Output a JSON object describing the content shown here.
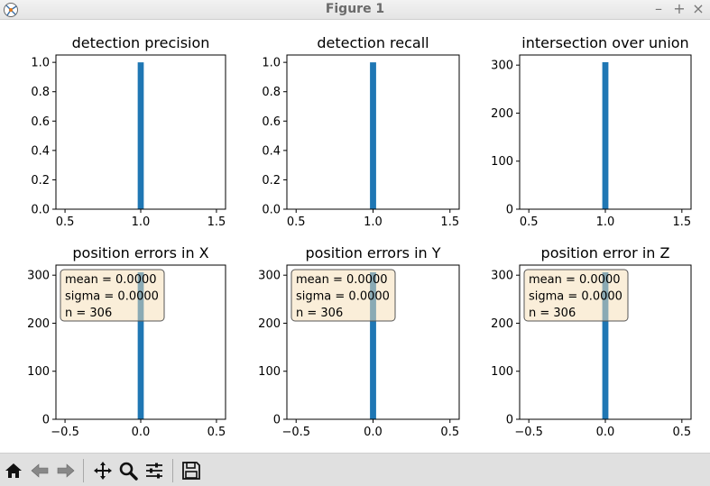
{
  "window": {
    "title": "Figure 1",
    "controls": {
      "minimize": "–",
      "maximize": "+",
      "close": "×"
    }
  },
  "toolbar": {
    "buttons": [
      {
        "name": "home-icon"
      },
      {
        "name": "back-arrow-icon"
      },
      {
        "name": "forward-arrow-icon"
      },
      {
        "name": "pan-icon"
      },
      {
        "name": "zoom-icon"
      },
      {
        "name": "configure-subplots-icon"
      },
      {
        "name": "save-icon"
      }
    ]
  },
  "colors": {
    "bar": "#1f77b4",
    "annotation_fill": "#f5deb3",
    "annotation_edge": "#555555"
  },
  "chart_data": [
    {
      "type": "bar",
      "title": "detection precision",
      "x": [
        1.0
      ],
      "values": [
        1.0
      ],
      "bar_width": 0.04,
      "xlim": [
        0.44,
        1.56
      ],
      "ylim": [
        0,
        1.05
      ],
      "xticks": [
        0.5,
        1.0,
        1.5
      ],
      "xtick_labels": [
        "0.5",
        "1.0",
        "1.5"
      ],
      "yticks": [
        0,
        0.2,
        0.4,
        0.6,
        0.8,
        1.0
      ],
      "ytick_labels": [
        "0.0",
        "0.2",
        "0.4",
        "0.6",
        "0.8",
        "1.0"
      ],
      "grid": false
    },
    {
      "type": "bar",
      "title": "detection recall",
      "x": [
        1.0
      ],
      "values": [
        1.0
      ],
      "bar_width": 0.04,
      "xlim": [
        0.44,
        1.56
      ],
      "ylim": [
        0,
        1.05
      ],
      "xticks": [
        0.5,
        1.0,
        1.5
      ],
      "xtick_labels": [
        "0.5",
        "1.0",
        "1.5"
      ],
      "yticks": [
        0,
        0.2,
        0.4,
        0.6,
        0.8,
        1.0
      ],
      "ytick_labels": [
        "0.0",
        "0.2",
        "0.4",
        "0.6",
        "0.8",
        "1.0"
      ],
      "grid": false
    },
    {
      "type": "bar",
      "title": "intersection over union",
      "x": [
        1.0
      ],
      "values": [
        306
      ],
      "bar_width": 0.04,
      "xlim": [
        0.44,
        1.56
      ],
      "ylim": [
        0,
        321
      ],
      "xticks": [
        0.5,
        1.0,
        1.5
      ],
      "xtick_labels": [
        "0.5",
        "1.0",
        "1.5"
      ],
      "yticks": [
        0,
        100,
        200,
        300
      ],
      "ytick_labels": [
        "0",
        "100",
        "200",
        "300"
      ],
      "grid": false
    },
    {
      "type": "bar",
      "title": "position errors in X",
      "x": [
        0.0
      ],
      "values": [
        306
      ],
      "bar_width": 0.04,
      "xlim": [
        -0.56,
        0.56
      ],
      "ylim": [
        0,
        321
      ],
      "xticks": [
        -0.5,
        0.0,
        0.5
      ],
      "xtick_labels": [
        "−0.5",
        "0.0",
        "0.5"
      ],
      "yticks": [
        0,
        100,
        200,
        300
      ],
      "ytick_labels": [
        "0",
        "100",
        "200",
        "300"
      ],
      "grid": false,
      "annotation": [
        "mean = 0.0000",
        "sigma = 0.0000",
        "n = 306"
      ]
    },
    {
      "type": "bar",
      "title": "position errors in Y",
      "x": [
        0.0
      ],
      "values": [
        306
      ],
      "bar_width": 0.04,
      "xlim": [
        -0.56,
        0.56
      ],
      "ylim": [
        0,
        321
      ],
      "xticks": [
        -0.5,
        0.0,
        0.5
      ],
      "xtick_labels": [
        "−0.5",
        "0.0",
        "0.5"
      ],
      "yticks": [
        0,
        100,
        200,
        300
      ],
      "ytick_labels": [
        "0",
        "100",
        "200",
        "300"
      ],
      "grid": false,
      "annotation": [
        "mean = 0.0000",
        "sigma = 0.0000",
        "n = 306"
      ]
    },
    {
      "type": "bar",
      "title": "position error in Z",
      "x": [
        0.0
      ],
      "values": [
        306
      ],
      "bar_width": 0.04,
      "xlim": [
        -0.56,
        0.56
      ],
      "ylim": [
        0,
        321
      ],
      "xticks": [
        -0.5,
        0.0,
        0.5
      ],
      "xtick_labels": [
        "−0.5",
        "0.0",
        "0.5"
      ],
      "yticks": [
        0,
        100,
        200,
        300
      ],
      "ytick_labels": [
        "0",
        "100",
        "200",
        "300"
      ],
      "grid": false,
      "annotation": [
        "mean = 0.0000",
        "sigma = 0.0000",
        "n = 306"
      ]
    }
  ]
}
